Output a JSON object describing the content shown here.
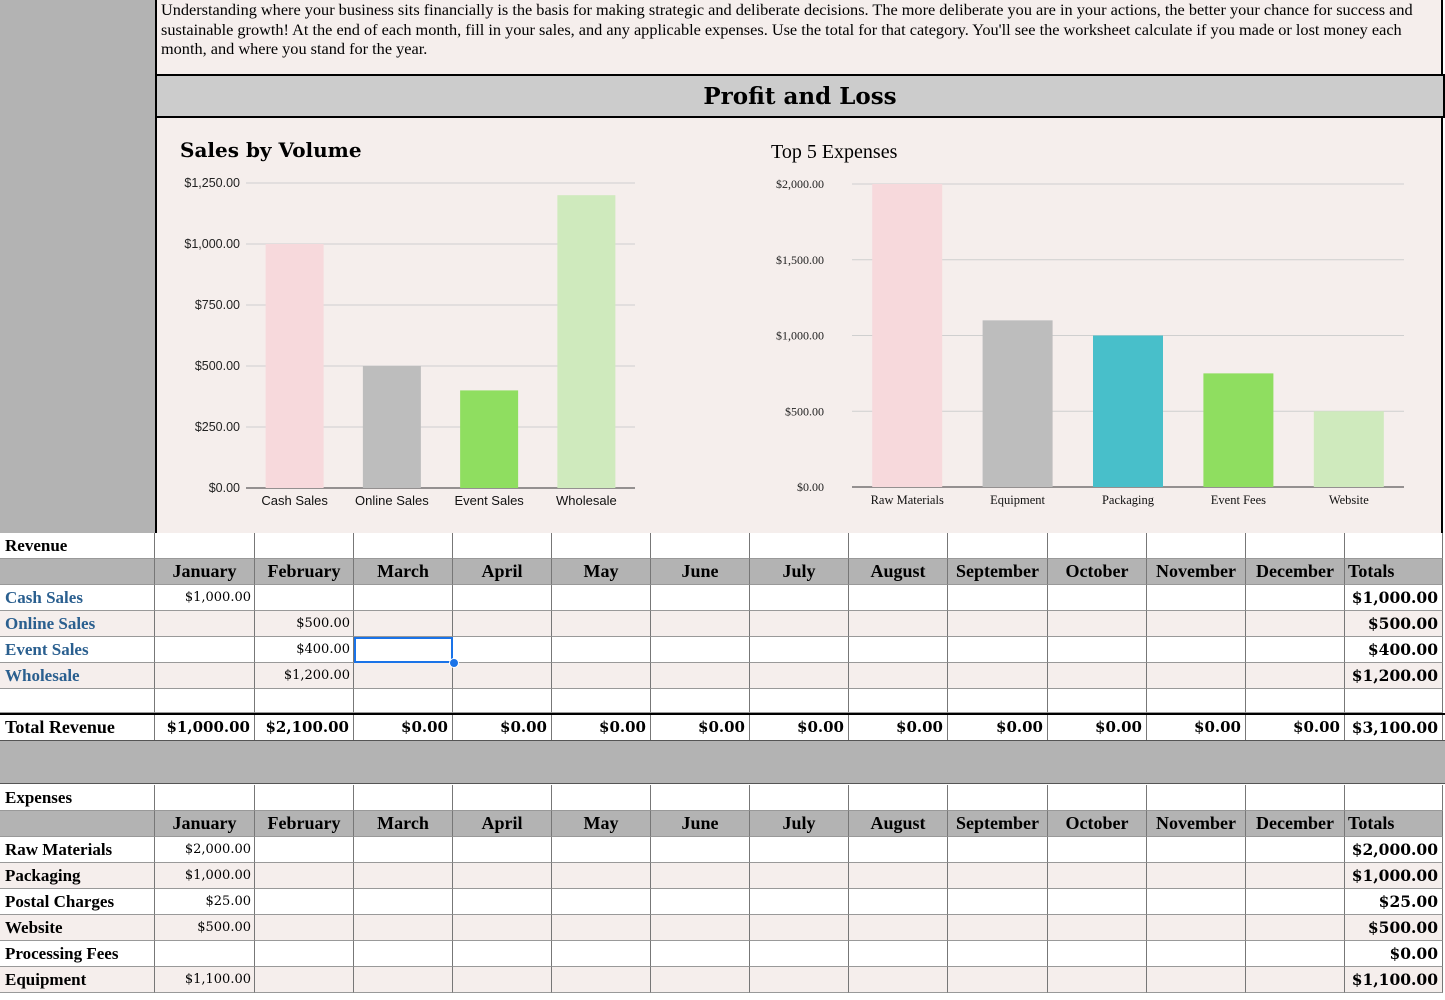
{
  "intro_text": "Understanding where your business sits financially is the basis for making strategic and deliberate decisions. The more deliberate you are in your actions, the better your chance for success and sustainable growth! At the end of each month, fill in your sales, and any applicable expenses. Use the total for that category. You'll see the worksheet calculate if you made or lost money each month, and where you stand for the year.",
  "page_title": "Profit and Loss",
  "chart_data": [
    {
      "type": "bar",
      "title": "Sales by Volume",
      "categories": [
        "Cash Sales",
        "Online Sales",
        "Event Sales",
        "Wholesale"
      ],
      "values": [
        1000,
        500,
        400,
        1200
      ],
      "colors": [
        "#f7d9dc",
        "#bdbdbd",
        "#8fde60",
        "#cfeabd"
      ],
      "ylim": [
        0,
        1250
      ],
      "yticks": [
        "$0.00",
        "$250.00",
        "$500.00",
        "$750.00",
        "$1,000.00",
        "$1,250.00"
      ],
      "grid": true
    },
    {
      "type": "bar",
      "title": "Top 5 Expenses",
      "categories": [
        "Raw Materials",
        "Equipment",
        "Packaging",
        "Event Fees",
        "Website"
      ],
      "values": [
        2000,
        1100,
        1000,
        750,
        500
      ],
      "colors": [
        "#f7d9dc",
        "#bdbdbd",
        "#48bfca",
        "#8fde60",
        "#cfeabd"
      ],
      "ylim": [
        0,
        2000
      ],
      "yticks": [
        "$0.00",
        "$500.00",
        "$1,000.00",
        "$1,500.00",
        "$2,000.00"
      ],
      "grid": true
    }
  ],
  "months": [
    "January",
    "February",
    "March",
    "April",
    "May",
    "June",
    "July",
    "August",
    "September",
    "October",
    "November",
    "December",
    "Totals"
  ],
  "revenue": {
    "section_label": "Revenue",
    "rows": [
      {
        "label": "Cash Sales",
        "values": [
          "$1,000.00",
          "",
          "",
          "",
          "",
          "",
          "",
          "",
          "",
          "",
          "",
          ""
        ],
        "total": "$1,000.00"
      },
      {
        "label": "Online Sales",
        "values": [
          "",
          "$500.00",
          "",
          "",
          "",
          "",
          "",
          "",
          "",
          "",
          "",
          ""
        ],
        "total": "$500.00"
      },
      {
        "label": "Event Sales",
        "values": [
          "",
          "$400.00",
          "",
          "",
          "",
          "",
          "",
          "",
          "",
          "",
          "",
          ""
        ],
        "total": "$400.00"
      },
      {
        "label": "Wholesale",
        "values": [
          "",
          "$1,200.00",
          "",
          "",
          "",
          "",
          "",
          "",
          "",
          "",
          "",
          ""
        ],
        "total": "$1,200.00"
      }
    ],
    "total_label": "Total Revenue",
    "total_values": [
      "$1,000.00",
      "$2,100.00",
      "$0.00",
      "$0.00",
      "$0.00",
      "$0.00",
      "$0.00",
      "$0.00",
      "$0.00",
      "$0.00",
      "$0.00",
      "$0.00"
    ],
    "grand_total": "$3,100.00"
  },
  "expenses": {
    "section_label": "Expenses",
    "rows": [
      {
        "label": "Raw Materials",
        "values": [
          "$2,000.00",
          "",
          "",
          "",
          "",
          "",
          "",
          "",
          "",
          "",
          "",
          ""
        ],
        "total": "$2,000.00"
      },
      {
        "label": "Packaging",
        "values": [
          "$1,000.00",
          "",
          "",
          "",
          "",
          "",
          "",
          "",
          "",
          "",
          "",
          ""
        ],
        "total": "$1,000.00"
      },
      {
        "label": "Postal Charges",
        "values": [
          "$25.00",
          "",
          "",
          "",
          "",
          "",
          "",
          "",
          "",
          "",
          "",
          ""
        ],
        "total": "$25.00"
      },
      {
        "label": "Website",
        "values": [
          "$500.00",
          "",
          "",
          "",
          "",
          "",
          "",
          "",
          "",
          "",
          "",
          ""
        ],
        "total": "$500.00"
      },
      {
        "label": "Processing Fees",
        "values": [
          "",
          "",
          "",
          "",
          "",
          "",
          "",
          "",
          "",
          "",
          "",
          ""
        ],
        "total": "$0.00"
      },
      {
        "label": "Equipment",
        "values": [
          "$1,100.00",
          "",
          "",
          "",
          "",
          "",
          "",
          "",
          "",
          "",
          "",
          ""
        ],
        "total": "$1,100.00"
      }
    ]
  }
}
